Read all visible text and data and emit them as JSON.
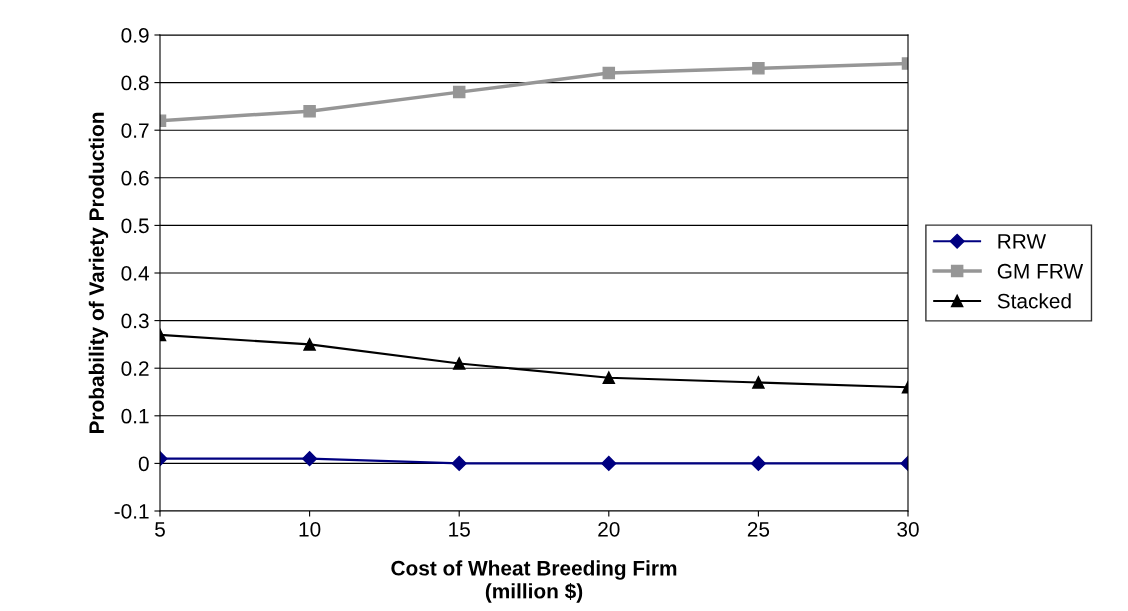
{
  "chart_data": {
    "type": "line",
    "xlabel": "Cost of Wheat Breeding Firm\n(million $)",
    "ylabel": "Probability of Variety Production",
    "categories": [
      "5",
      "10",
      "15",
      "20",
      "25",
      "30"
    ],
    "series": [
      {
        "name": "RRW",
        "color": "#000080",
        "marker": "diamond",
        "values": [
          0.01,
          0.01,
          0,
          0,
          0,
          0
        ]
      },
      {
        "name": "GM FRW",
        "color": "#969696",
        "marker": "square",
        "values": [
          0.72,
          0.74,
          0.78,
          0.82,
          0.83,
          0.84
        ]
      },
      {
        "name": "Stacked",
        "color": "#000000",
        "marker": "triangle",
        "values": [
          0.27,
          0.25,
          0.21,
          0.18,
          0.17,
          0.16
        ]
      }
    ],
    "ylim": [
      -0.1,
      0.9
    ],
    "yticks": [
      {
        "value": -0.1,
        "label": "-0.1"
      },
      0,
      0.1,
      0.2,
      0.3,
      0.4,
      0.5,
      0.6,
      0.7,
      0.8,
      0.9
    ],
    "grid": "y",
    "legend": "right",
    "line_style": "solid"
  }
}
